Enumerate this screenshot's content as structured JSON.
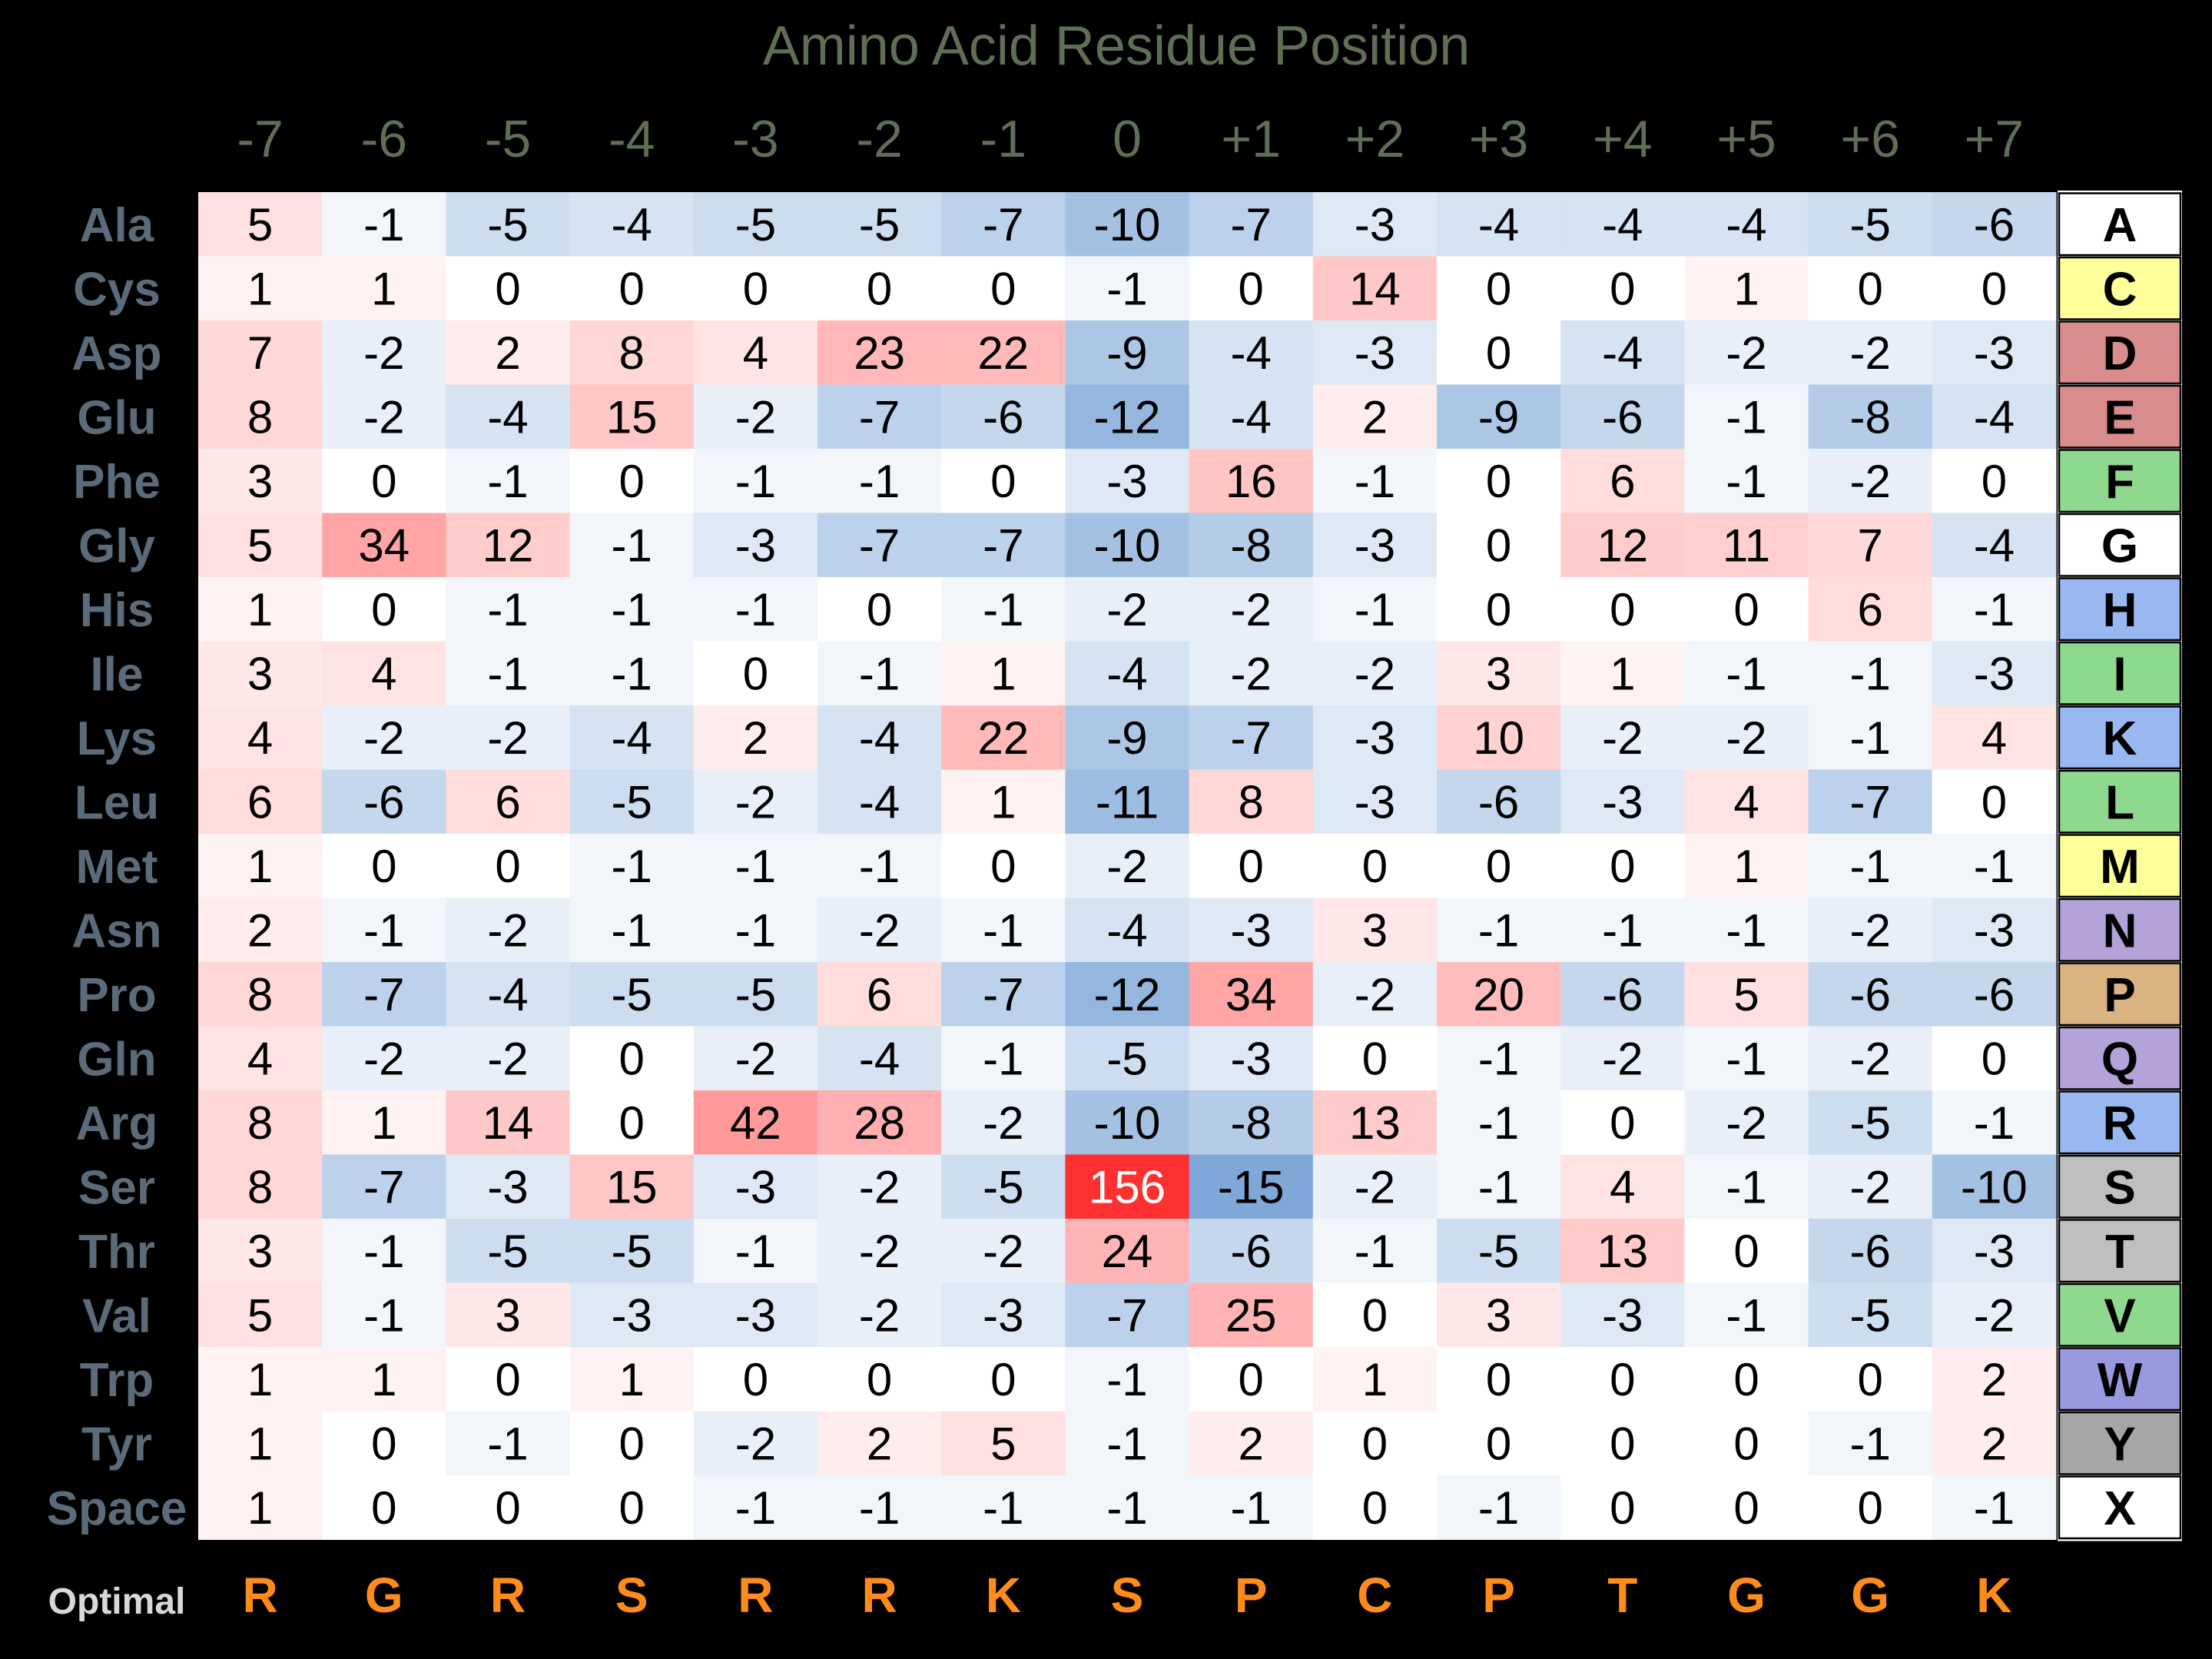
{
  "chart_data": {
    "type": "heatmap",
    "title": "Amino Acid Residue Position",
    "columns": [
      "-7",
      "-6",
      "-5",
      "-4",
      "-3",
      "-2",
      "-1",
      "0",
      "+1",
      "+2",
      "+3",
      "+4",
      "+5",
      "+6",
      "+7"
    ],
    "rows": [
      "Ala",
      "Cys",
      "Asp",
      "Glu",
      "Phe",
      "Gly",
      "His",
      "Ile",
      "Lys",
      "Leu",
      "Met",
      "Asn",
      "Pro",
      "Gln",
      "Arg",
      "Ser",
      "Thr",
      "Val",
      "Trp",
      "Tyr",
      "Space"
    ],
    "row_codes": [
      "A",
      "C",
      "D",
      "E",
      "F",
      "G",
      "H",
      "I",
      "K",
      "L",
      "M",
      "N",
      "P",
      "Q",
      "R",
      "S",
      "T",
      "V",
      "W",
      "Y",
      "X"
    ],
    "values": [
      [
        5,
        -1,
        -5,
        -4,
        -5,
        -5,
        -7,
        -10,
        -7,
        -3,
        -4,
        -4,
        -4,
        -5,
        -6
      ],
      [
        1,
        1,
        0,
        0,
        0,
        0,
        0,
        -1,
        0,
        14,
        0,
        0,
        1,
        0,
        0
      ],
      [
        7,
        -2,
        2,
        8,
        4,
        23,
        22,
        -9,
        -4,
        -3,
        0,
        -4,
        -2,
        -2,
        -3
      ],
      [
        8,
        -2,
        -4,
        15,
        -2,
        -7,
        -6,
        -12,
        -4,
        2,
        -9,
        -6,
        -1,
        -8,
        -4
      ],
      [
        3,
        0,
        -1,
        0,
        -1,
        -1,
        0,
        -3,
        16,
        -1,
        0,
        6,
        -1,
        -2,
        0
      ],
      [
        5,
        34,
        12,
        -1,
        -3,
        -7,
        -7,
        -10,
        -8,
        -3,
        0,
        12,
        11,
        7,
        -4
      ],
      [
        1,
        0,
        -1,
        -1,
        -1,
        0,
        -1,
        -2,
        -2,
        -1,
        0,
        0,
        0,
        6,
        -1
      ],
      [
        3,
        4,
        -1,
        -1,
        0,
        -1,
        1,
        -4,
        -2,
        -2,
        3,
        1,
        -1,
        -1,
        -3
      ],
      [
        4,
        -2,
        -2,
        -4,
        2,
        -4,
        22,
        -9,
        -7,
        -3,
        10,
        -2,
        -2,
        -1,
        4
      ],
      [
        6,
        -6,
        6,
        -5,
        -2,
        -4,
        1,
        -11,
        8,
        -3,
        -6,
        -3,
        4,
        -7,
        0
      ],
      [
        1,
        0,
        0,
        -1,
        -1,
        -1,
        0,
        -2,
        0,
        0,
        0,
        0,
        1,
        -1,
        -1
      ],
      [
        2,
        -1,
        -2,
        -1,
        -1,
        -2,
        -1,
        -4,
        -3,
        3,
        -1,
        -1,
        -1,
        -2,
        -3
      ],
      [
        8,
        -7,
        -4,
        -5,
        -5,
        6,
        -7,
        -12,
        34,
        -2,
        20,
        -6,
        5,
        -6,
        -6
      ],
      [
        4,
        -2,
        -2,
        0,
        -2,
        -4,
        -1,
        -5,
        -3,
        0,
        -1,
        -2,
        -1,
        -2,
        0
      ],
      [
        8,
        1,
        14,
        0,
        42,
        28,
        -2,
        -10,
        -8,
        13,
        -1,
        0,
        -2,
        -5,
        -1
      ],
      [
        8,
        -7,
        -3,
        15,
        -3,
        -2,
        -5,
        156,
        -15,
        -2,
        -1,
        4,
        -1,
        -2,
        -10
      ],
      [
        3,
        -1,
        -5,
        -5,
        -1,
        -2,
        -2,
        24,
        -6,
        -1,
        -5,
        13,
        0,
        -6,
        -3
      ],
      [
        5,
        -1,
        3,
        -3,
        -3,
        -2,
        -3,
        -7,
        25,
        0,
        3,
        -3,
        -1,
        -5,
        -2
      ],
      [
        1,
        1,
        0,
        1,
        0,
        0,
        0,
        -1,
        0,
        1,
        0,
        0,
        0,
        0,
        2
      ],
      [
        1,
        0,
        -1,
        0,
        -2,
        2,
        5,
        -1,
        2,
        0,
        0,
        0,
        0,
        -1,
        2
      ],
      [
        1,
        0,
        0,
        0,
        -1,
        -1,
        -1,
        -1,
        -1,
        0,
        -1,
        0,
        0,
        0,
        -1
      ]
    ],
    "optimal_label": "Optimal",
    "optimal": [
      "R",
      "G",
      "R",
      "S",
      "R",
      "R",
      "K",
      "S",
      "P",
      "C",
      "P",
      "T",
      "G",
      "G",
      "K"
    ],
    "code_colors": {
      "A": "#ffffff",
      "C": "#ffff99",
      "D": "#d98c8c",
      "E": "#d98c8c",
      "F": "#8fd98f",
      "G": "#ffffff",
      "H": "#99b8f2",
      "I": "#8fd98f",
      "K": "#99b8f2",
      "L": "#8fd98f",
      "M": "#ffff99",
      "N": "#b3a3d9",
      "P": "#d9b380",
      "Q": "#b3a3d9",
      "R": "#99b8f2",
      "S": "#bfbfbf",
      "T": "#bfbfbf",
      "V": "#8fd98f",
      "W": "#9999e0",
      "Y": "#a6a6a6",
      "X": "#ffffff"
    },
    "colors": {
      "background": "#000000",
      "title": "#5f6f55",
      "column_label": "#5f6f55",
      "row_label": "#5b6b7a",
      "optimal_label": "#d8d8d8",
      "optimal_letters": "#ff8c1a",
      "positive_max": "#ff3030",
      "negative_max": "#7fa8d8",
      "cell_text": "#000000",
      "cell_text_strong": "#ffffff"
    }
  }
}
